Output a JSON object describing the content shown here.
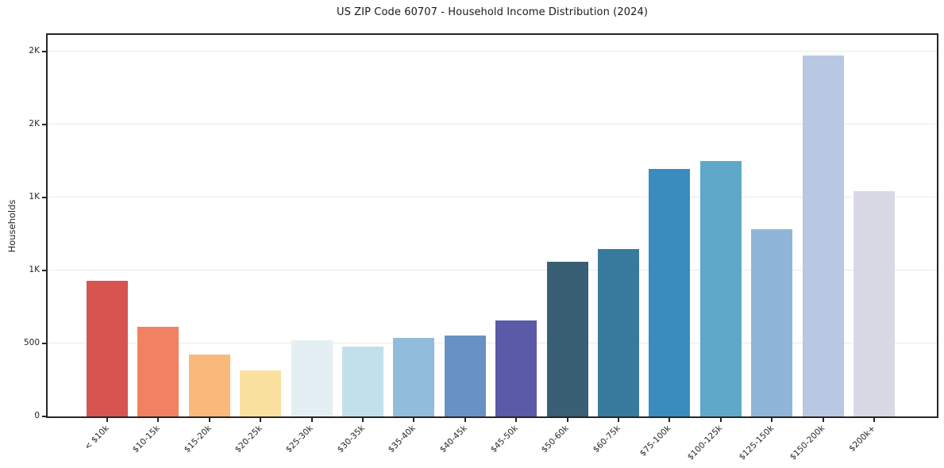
{
  "chart_data": {
    "type": "bar",
    "title": "US ZIP Code 60707 - Household Income Distribution (2024)",
    "xlabel": "",
    "ylabel": "Households",
    "categories": [
      "< $10k",
      "$10-15k",
      "$15-20k",
      "$20-25k",
      "$25-30k",
      "$30-35k",
      "$35-40k",
      "$40-45k",
      "$45-50k",
      "$50-60k",
      "$60-75k",
      "$75-100k",
      "$100-125k",
      "$125-150k",
      "$150-200k",
      "$200k+"
    ],
    "values": [
      930,
      617,
      425,
      317,
      520,
      479,
      536,
      554,
      657,
      1059,
      1146,
      1696,
      1751,
      1281,
      2477,
      1544
    ],
    "bar_colors": [
      "#d85451",
      "#f08261",
      "#f9b97a",
      "#fbe1a0",
      "#e3eff3",
      "#c2e0ec",
      "#92bcdb",
      "#6892c5",
      "#5a5aa8",
      "#385f74",
      "#377a9e",
      "#3a8cbf",
      "#5fa8c9",
      "#8fb6d8",
      "#b8c8e2",
      "#d8d9e5"
    ],
    "ylim": [
      0,
      2616
    ],
    "yticks": [
      {
        "value": 0,
        "label": "0"
      },
      {
        "value": 500,
        "label": "500"
      },
      {
        "value": 1000,
        "label": "1K"
      },
      {
        "value": 1500,
        "label": "1K"
      },
      {
        "value": 2000,
        "label": "2K"
      },
      {
        "value": 2500,
        "label": "2K"
      }
    ],
    "grid": "horizontal",
    "legend": "none",
    "colors": {
      "background": "#ffffff",
      "grid": "#e9e9e9",
      "spine": "#262626",
      "tick_text": "#262626",
      "title_text": "#1a1a1a"
    }
  }
}
